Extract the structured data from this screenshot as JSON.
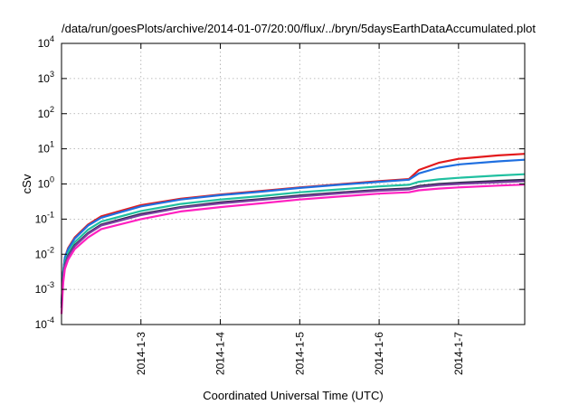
{
  "chart_data": {
    "type": "line",
    "title": "/data/run/goesPlots/archive/2014-01-07/20:00/flux/../bryn/5daysEarthDataAccumulated.plot",
    "xlabel": "Coordinated Universal Time (UTC)",
    "ylabel": "cSv",
    "x_range": [
      "2014-01-02 00:00",
      "2014-01-07 20:00"
    ],
    "ylim": [
      0.0001,
      10000
    ],
    "y_scale": "log",
    "grid": true,
    "x_ticks": [
      {
        "x": "2014-01-03 00:00",
        "label": "2014-1-3"
      },
      {
        "x": "2014-01-04 00:00",
        "label": "2014-1-4"
      },
      {
        "x": "2014-01-05 00:00",
        "label": "2014-1-5"
      },
      {
        "x": "2014-01-06 00:00",
        "label": "2014-1-6"
      },
      {
        "x": "2014-01-07 00:00",
        "label": "2014-1-7"
      }
    ],
    "y_ticks": [
      {
        "value": 0.0001,
        "base": "10",
        "exp": "-4"
      },
      {
        "value": 0.001,
        "base": "10",
        "exp": "-3"
      },
      {
        "value": 0.01,
        "base": "10",
        "exp": "-2"
      },
      {
        "value": 0.1,
        "base": "10",
        "exp": "-1"
      },
      {
        "value": 1,
        "base": "10",
        "exp": "0"
      },
      {
        "value": 10,
        "base": "10",
        "exp": "1"
      },
      {
        "value": 100,
        "base": "10",
        "exp": "2"
      },
      {
        "value": 1000,
        "base": "10",
        "exp": "3"
      },
      {
        "value": 10000,
        "base": "10",
        "exp": "4"
      }
    ],
    "series": [
      {
        "color": "#e31a1c",
        "values": [
          [
            "2014-01-02 00:00",
            0.0004
          ],
          [
            "2014-01-02 00:30",
            0.003
          ],
          [
            "2014-01-02 01:00",
            0.008
          ],
          [
            "2014-01-02 02:00",
            0.015
          ],
          [
            "2014-01-02 04:00",
            0.03
          ],
          [
            "2014-01-02 08:00",
            0.07
          ],
          [
            "2014-01-02 12:00",
            0.12
          ],
          [
            "2014-01-03 00:00",
            0.25
          ],
          [
            "2014-01-03 12:00",
            0.38
          ],
          [
            "2014-01-04 00:00",
            0.5
          ],
          [
            "2014-01-04 12:00",
            0.63
          ],
          [
            "2014-01-05 00:00",
            0.8
          ],
          [
            "2014-01-05 12:00",
            0.98
          ],
          [
            "2014-01-06 00:00",
            1.2
          ],
          [
            "2014-01-06 09:00",
            1.38
          ],
          [
            "2014-01-06 12:00",
            2.5
          ],
          [
            "2014-01-06 18:00",
            4.0
          ],
          [
            "2014-01-07 00:00",
            5.2
          ],
          [
            "2014-01-07 12:00",
            6.5
          ],
          [
            "2014-01-07 20:00",
            7.2
          ]
        ]
      },
      {
        "color": "#1f6fe0",
        "values": [
          [
            "2014-01-02 00:00",
            0.0004
          ],
          [
            "2014-01-02 00:30",
            0.003
          ],
          [
            "2014-01-02 01:00",
            0.008
          ],
          [
            "2014-01-02 02:00",
            0.014
          ],
          [
            "2014-01-02 04:00",
            0.028
          ],
          [
            "2014-01-02 08:00",
            0.065
          ],
          [
            "2014-01-02 12:00",
            0.11
          ],
          [
            "2014-01-03 00:00",
            0.23
          ],
          [
            "2014-01-03 12:00",
            0.36
          ],
          [
            "2014-01-04 00:00",
            0.48
          ],
          [
            "2014-01-04 12:00",
            0.6
          ],
          [
            "2014-01-05 00:00",
            0.77
          ],
          [
            "2014-01-05 12:00",
            0.95
          ],
          [
            "2014-01-06 00:00",
            1.15
          ],
          [
            "2014-01-06 09:00",
            1.32
          ],
          [
            "2014-01-06 12:00",
            2.0
          ],
          [
            "2014-01-06 18:00",
            2.9
          ],
          [
            "2014-01-07 00:00",
            3.6
          ],
          [
            "2014-01-07 12:00",
            4.4
          ],
          [
            "2014-01-07 20:00",
            4.9
          ]
        ]
      },
      {
        "color": "#20c0a0",
        "values": [
          [
            "2014-01-02 00:00",
            0.0003
          ],
          [
            "2014-01-02 00:30",
            0.0025
          ],
          [
            "2014-01-02 01:00",
            0.006
          ],
          [
            "2014-01-02 02:00",
            0.011
          ],
          [
            "2014-01-02 04:00",
            0.022
          ],
          [
            "2014-01-02 08:00",
            0.05
          ],
          [
            "2014-01-02 12:00",
            0.085
          ],
          [
            "2014-01-03 00:00",
            0.17
          ],
          [
            "2014-01-03 12:00",
            0.27
          ],
          [
            "2014-01-04 00:00",
            0.36
          ],
          [
            "2014-01-04 12:00",
            0.45
          ],
          [
            "2014-01-05 00:00",
            0.58
          ],
          [
            "2014-01-05 12:00",
            0.7
          ],
          [
            "2014-01-06 00:00",
            0.85
          ],
          [
            "2014-01-06 09:00",
            0.95
          ],
          [
            "2014-01-06 12:00",
            1.15
          ],
          [
            "2014-01-06 18:00",
            1.35
          ],
          [
            "2014-01-07 00:00",
            1.5
          ],
          [
            "2014-01-07 12:00",
            1.75
          ],
          [
            "2014-01-07 20:00",
            1.9
          ]
        ]
      },
      {
        "color": "#2a2a4a",
        "values": [
          [
            "2014-01-02 00:00",
            0.0003
          ],
          [
            "2014-01-02 00:30",
            0.002
          ],
          [
            "2014-01-02 01:00",
            0.005
          ],
          [
            "2014-01-02 02:00",
            0.009
          ],
          [
            "2014-01-02 04:00",
            0.018
          ],
          [
            "2014-01-02 08:00",
            0.04
          ],
          [
            "2014-01-02 12:00",
            0.07
          ],
          [
            "2014-01-03 00:00",
            0.14
          ],
          [
            "2014-01-03 12:00",
            0.22
          ],
          [
            "2014-01-04 00:00",
            0.3
          ],
          [
            "2014-01-04 12:00",
            0.37
          ],
          [
            "2014-01-05 00:00",
            0.47
          ],
          [
            "2014-01-05 12:00",
            0.57
          ],
          [
            "2014-01-06 00:00",
            0.68
          ],
          [
            "2014-01-06 09:00",
            0.75
          ],
          [
            "2014-01-06 12:00",
            0.88
          ],
          [
            "2014-01-06 18:00",
            1.0
          ],
          [
            "2014-01-07 00:00",
            1.08
          ],
          [
            "2014-01-07 12:00",
            1.22
          ],
          [
            "2014-01-07 20:00",
            1.32
          ]
        ]
      },
      {
        "color": "#7b3fa0",
        "values": [
          [
            "2014-01-02 00:00",
            0.0003
          ],
          [
            "2014-01-02 00:30",
            0.0019
          ],
          [
            "2014-01-02 01:00",
            0.0048
          ],
          [
            "2014-01-02 02:00",
            0.0085
          ],
          [
            "2014-01-02 04:00",
            0.017
          ],
          [
            "2014-01-02 08:00",
            0.038
          ],
          [
            "2014-01-02 12:00",
            0.066
          ],
          [
            "2014-01-03 00:00",
            0.13
          ],
          [
            "2014-01-03 12:00",
            0.21
          ],
          [
            "2014-01-04 00:00",
            0.28
          ],
          [
            "2014-01-04 12:00",
            0.35
          ],
          [
            "2014-01-05 00:00",
            0.44
          ],
          [
            "2014-01-05 12:00",
            0.54
          ],
          [
            "2014-01-06 00:00",
            0.64
          ],
          [
            "2014-01-06 09:00",
            0.7
          ],
          [
            "2014-01-06 12:00",
            0.82
          ],
          [
            "2014-01-06 18:00",
            0.93
          ],
          [
            "2014-01-07 00:00",
            1.0
          ],
          [
            "2014-01-07 12:00",
            1.12
          ],
          [
            "2014-01-07 20:00",
            1.2
          ]
        ]
      },
      {
        "color": "#ff20c0",
        "values": [
          [
            "2014-01-02 00:00",
            0.0002
          ],
          [
            "2014-01-02 00:30",
            0.0015
          ],
          [
            "2014-01-02 01:00",
            0.0038
          ],
          [
            "2014-01-02 02:00",
            0.007
          ],
          [
            "2014-01-02 04:00",
            0.014
          ],
          [
            "2014-01-02 08:00",
            0.03
          ],
          [
            "2014-01-02 12:00",
            0.052
          ],
          [
            "2014-01-03 00:00",
            0.1
          ],
          [
            "2014-01-03 12:00",
            0.165
          ],
          [
            "2014-01-04 00:00",
            0.22
          ],
          [
            "2014-01-04 12:00",
            0.28
          ],
          [
            "2014-01-05 00:00",
            0.36
          ],
          [
            "2014-01-05 12:00",
            0.44
          ],
          [
            "2014-01-06 00:00",
            0.53
          ],
          [
            "2014-01-06 09:00",
            0.58
          ],
          [
            "2014-01-06 12:00",
            0.66
          ],
          [
            "2014-01-06 18:00",
            0.74
          ],
          [
            "2014-01-07 00:00",
            0.8
          ],
          [
            "2014-01-07 12:00",
            0.9
          ],
          [
            "2014-01-07 20:00",
            0.96
          ]
        ]
      }
    ]
  }
}
